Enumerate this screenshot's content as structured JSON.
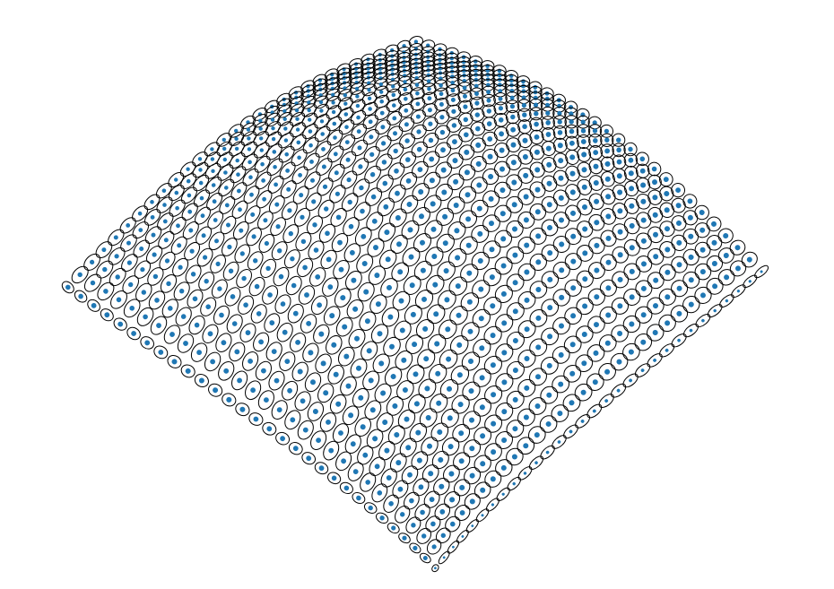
{
  "diagram": {
    "kind": "ellipse-glyph-field",
    "grid": {
      "rows": 30,
      "cols": 30
    },
    "colors": {
      "background": "#ffffff",
      "ellipse_stroke": "#000000",
      "center_dot": "#1f77b4"
    }
  }
}
